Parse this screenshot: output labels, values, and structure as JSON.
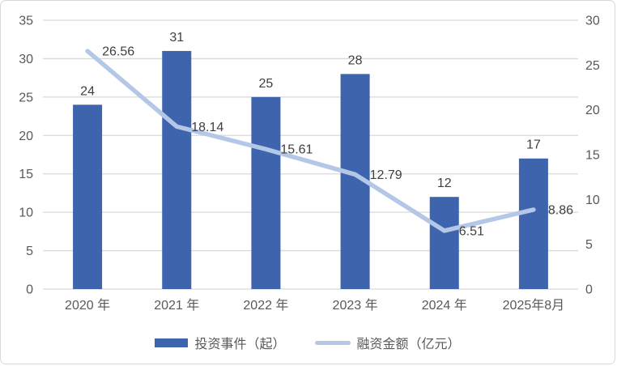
{
  "chart_data": {
    "type": "combo-bar-line",
    "title": "",
    "categories": [
      "2020 年",
      "2021 年",
      "2022 年",
      "2023 年",
      "2024 年",
      "2025年8月"
    ],
    "series": [
      {
        "name": "投资事件（起）",
        "chart_type": "bar",
        "axis": "left",
        "values": [
          24,
          31,
          25,
          28,
          12,
          17
        ],
        "labels": [
          "24",
          "31",
          "25",
          "28",
          "12",
          "17"
        ],
        "color": "#3e64ae"
      },
      {
        "name": "融资金额（亿元）",
        "chart_type": "line",
        "axis": "right",
        "values": [
          26.56,
          18.14,
          15.61,
          12.79,
          6.51,
          8.86
        ],
        "labels": [
          "26.56",
          "18.14",
          "15.61",
          "12.79",
          "6.51",
          "8.86"
        ],
        "color": "#b4c7e7"
      }
    ],
    "left_axis": {
      "min": 0,
      "max": 35,
      "step": 5,
      "ticks": [
        "0",
        "5",
        "10",
        "15",
        "20",
        "25",
        "30",
        "35"
      ]
    },
    "right_axis": {
      "min": 0,
      "max": 30,
      "step": 5,
      "ticks": [
        "0",
        "5",
        "10",
        "15",
        "20",
        "25",
        "30"
      ]
    },
    "grid": true,
    "legend_position": "bottom",
    "legend": [
      {
        "label": "投资事件（起）",
        "swatch": "bar"
      },
      {
        "label": "融资金额（亿元）",
        "swatch": "line"
      }
    ],
    "colors": {
      "bar": "#3e64ae",
      "line": "#b4c7e7",
      "grid": "#d9d9d9",
      "axis_text": "#595959",
      "data_label": "#404040",
      "background": "#ffffff",
      "border": "#d9d9d9"
    }
  }
}
